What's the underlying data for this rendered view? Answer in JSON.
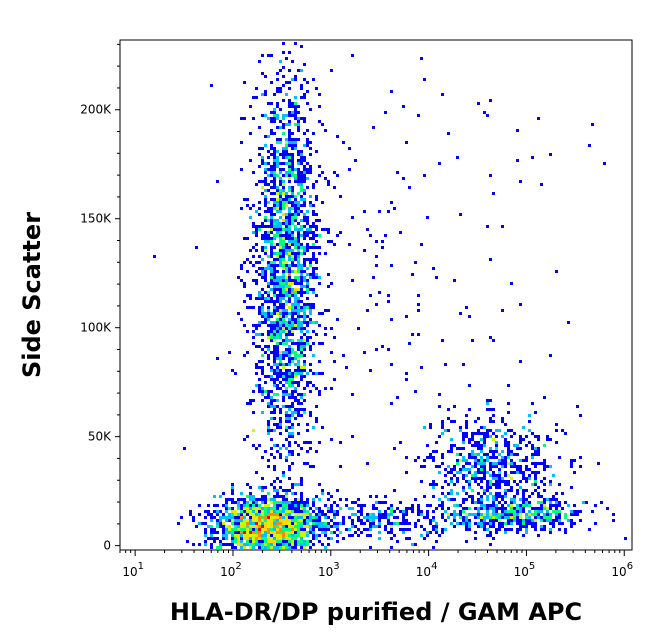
{
  "chart_data": {
    "type": "scatter",
    "subtype": "flow cytometry density dot plot",
    "xlabel": "HLA-DR/DP purified / GAM APC",
    "ylabel": "Side Scatter",
    "xscale": "log",
    "xlim": [
      7,
      1200000
    ],
    "ylim": [
      -2000,
      232000
    ],
    "xticks": [
      {
        "value": 10,
        "base": "10",
        "exp": "1"
      },
      {
        "value": 100,
        "base": "10",
        "exp": "2"
      },
      {
        "value": 1000,
        "base": "10",
        "exp": "3"
      },
      {
        "value": 10000,
        "base": "10",
        "exp": "4"
      },
      {
        "value": 100000,
        "base": "10",
        "exp": "5"
      },
      {
        "value": 1000000,
        "base": "10",
        "exp": "6"
      }
    ],
    "yticks": [
      {
        "value": 0,
        "label": "0"
      },
      {
        "value": 50000,
        "label": "50K"
      },
      {
        "value": 100000,
        "label": "100K"
      },
      {
        "value": 150000,
        "label": "150K"
      },
      {
        "value": 200000,
        "label": "200K"
      }
    ],
    "grid": false,
    "legend": "none",
    "colormap": [
      "#0000ff",
      "#00bfff",
      "#00ff80",
      "#c8ff00",
      "#ffd700",
      "#ff8c00",
      "#ff0000"
    ],
    "populations": [
      {
        "x_median": 350,
        "x_spread_log10": 0.17,
        "y_mean": 125000,
        "y_sd": 45000,
        "count": 2200,
        "peak_density": "yellow"
      },
      {
        "x_median": 230,
        "x_spread_log10": 0.28,
        "y_mean": 9000,
        "y_sd": 7000,
        "count": 1800,
        "peak_density": "red"
      },
      {
        "x_median": 45000,
        "x_spread_log10": 0.35,
        "y_mean": 36000,
        "y_sd": 12000,
        "count": 650,
        "peak_density": "cyan"
      },
      {
        "x_median": 80000,
        "x_spread_log10": 0.35,
        "y_mean": 14000,
        "y_sd": 4000,
        "count": 450,
        "peak_density": "cyan"
      },
      {
        "x_median": 3000,
        "x_spread_log10": 0.45,
        "y_mean": 12000,
        "y_sd": 5000,
        "count": 300,
        "peak_density": "blue"
      },
      {
        "x_median": 3000,
        "x_spread_log10": 0.9,
        "y_mean": 120000,
        "y_sd": 60000,
        "count": 200,
        "peak_density": "blue"
      }
    ]
  }
}
